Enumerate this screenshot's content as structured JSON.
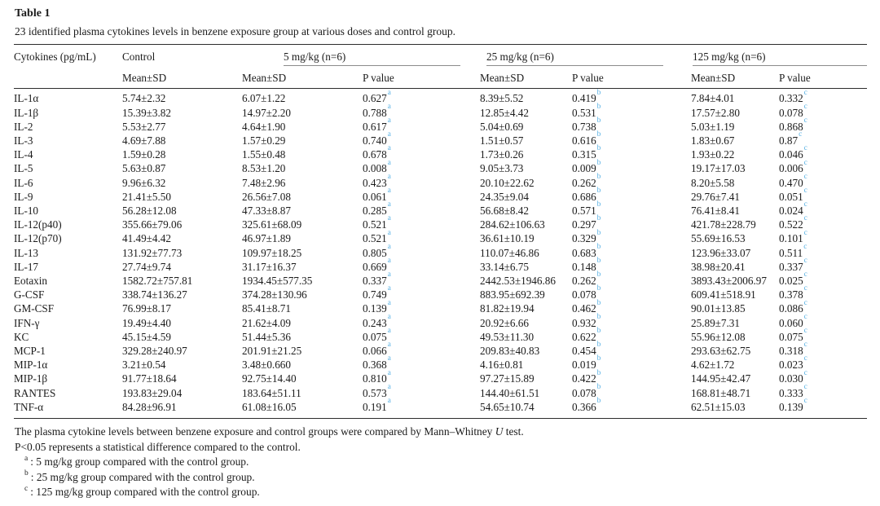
{
  "table": {
    "title": "Table 1",
    "caption": "23 identified plasma cytokines levels in benzene exposure group at various doses and control group.",
    "columns": {
      "cytokines_label": "Cytokines (pg/mL)",
      "control_label": "Control",
      "mean_sd_label": "Mean±SD",
      "p_value_label": "P value",
      "groups": [
        {
          "label": "5 mg/kg (n=6)",
          "sup": "a"
        },
        {
          "label": "25 mg/kg (n=6)",
          "sup": "b"
        },
        {
          "label": "125 mg/kg (n=6)",
          "sup": "c"
        }
      ]
    },
    "sup_color": "#57b0e3",
    "rows": [
      {
        "cytokine": "IL-1α",
        "control": "5.74±2.32",
        "m5": "6.07±1.22",
        "p5": "0.627",
        "m25": "8.39±5.52",
        "p25": "0.419",
        "m125": "7.84±4.01",
        "p125": "0.332",
        "bold": []
      },
      {
        "cytokine": "IL-1β",
        "control": "15.39±3.82",
        "m5": "14.97±2.20",
        "p5": "0.788",
        "m25": "12.85±4.42",
        "p25": "0.531",
        "m125": "17.57±2.80",
        "p125": "0.078",
        "bold": []
      },
      {
        "cytokine": "IL-2",
        "control": "5.53±2.77",
        "m5": "4.64±1.90",
        "p5": "0.617",
        "m25": "5.04±0.69",
        "p25": "0.738",
        "m125": "5.03±1.19",
        "p125": "0.868",
        "bold": []
      },
      {
        "cytokine": "IL-3",
        "control": "4.69±7.88",
        "m5": "1.57±0.29",
        "p5": "0.740",
        "m25": "1.51±0.57",
        "p25": "0.616",
        "m125": "1.83±0.67",
        "p125": "0.87",
        "bold": []
      },
      {
        "cytokine": "IL-4",
        "control": "1.59±0.28",
        "m5": "1.55±0.48",
        "p5": "0.678",
        "m25": "1.73±0.26",
        "p25": "0.315",
        "m125": "1.93±0.22",
        "p125": "0.046",
        "bold": [
          "cytokine",
          "control",
          "m5",
          "p5",
          "m25",
          "p25",
          "m125",
          "p125"
        ]
      },
      {
        "cytokine": "IL-5",
        "control": "5.63±0.87",
        "m5": "8.53±1.20",
        "p5": "0.008",
        "m25": "9.05±3.73",
        "p25": "0.009",
        "m125": "19.17±17.03",
        "p125": "0.006",
        "bold": [
          "cytokine",
          "control",
          "m5",
          "p5",
          "m25",
          "p25",
          "p125"
        ]
      },
      {
        "cytokine": "IL-6",
        "control": "9.96±6.32",
        "m5": "7.48±2.96",
        "p5": "0.423",
        "m25": "20.10±22.62",
        "p25": "0.262",
        "m125": "8.20±5.58",
        "p125": "0.470",
        "bold": []
      },
      {
        "cytokine": "IL-9",
        "control": "21.41±5.50",
        "m5": "26.56±7.08",
        "p5": "0.061",
        "m25": "24.35±9.04",
        "p25": "0.686",
        "m125": "29.76±7.41",
        "p125": "0.051",
        "bold": []
      },
      {
        "cytokine": "IL-10",
        "control": "56.28±12.08",
        "m5": "47.33±8.87",
        "p5": "0.285",
        "m25": "56.68±8.42",
        "p25": "0.571",
        "m125": "76.41±8.41",
        "p125": "0.024",
        "bold": [
          "cytokine",
          "control",
          "m5",
          "p5",
          "m25",
          "p25",
          "m125",
          "p125"
        ]
      },
      {
        "cytokine": "IL-12(p40)",
        "control": "355.66±79.06",
        "m5": "325.61±68.09",
        "p5": "0.521",
        "m25": "284.62±106.63",
        "p25": "0.297",
        "m125": "421.78±228.79",
        "p125": "0.522",
        "bold": []
      },
      {
        "cytokine": "IL-12(p70)",
        "control": "41.49±4.42",
        "m5": "46.97±1.89",
        "p5": "0.521",
        "m25": "36.61±10.19",
        "p25": "0.329",
        "m125": "55.69±16.53",
        "p125": "0.101",
        "bold": []
      },
      {
        "cytokine": "IL-13",
        "control": "131.92±77.73",
        "m5": "109.97±18.25",
        "p5": "0.805",
        "m25": "110.07±46.86",
        "p25": "0.683",
        "m125": "123.96±33.07",
        "p125": "0.511",
        "bold": []
      },
      {
        "cytokine": "IL-17",
        "control": "27.74±9.74",
        "m5": "31.17±16.37",
        "p5": "0.669",
        "m25": "33.14±6.75",
        "p25": "0.148",
        "m125": "38.98±20.41",
        "p125": "0.337",
        "bold": []
      },
      {
        "cytokine": "Eotaxin",
        "control": "1582.72±757.81",
        "m5": "1934.45±577.35",
        "p5": "0.337",
        "m25": "2442.53±1946.86",
        "p25": "0.262",
        "m125": "3893.43±2006.97",
        "p125": "0.025",
        "bold": [
          "cytokine",
          "control",
          "m5",
          "p5",
          "m25",
          "p25",
          "m125",
          "p125"
        ]
      },
      {
        "cytokine": "G-CSF",
        "control": "338.74±136.27",
        "m5": "374.28±130.96",
        "p5": "0.749",
        "m25": "883.95±692.39",
        "p25": "0.078",
        "m125": "609.41±518.91",
        "p125": "0.378",
        "bold": []
      },
      {
        "cytokine": "GM-CSF",
        "control": "76.99±8.17",
        "m5": "85.41±8.71",
        "p5": "0.139",
        "m25": "81.82±19.94",
        "p25": "0.462",
        "m125": "90.01±13.85",
        "p125": "0.086",
        "bold": []
      },
      {
        "cytokine": "IFN-γ",
        "control": "19.49±4.40",
        "m5": "21.62±4.09",
        "p5": "0.243",
        "m25": "20.92±6.66",
        "p25": "0.932",
        "m125": "25.89±7.31",
        "p125": "0.060",
        "bold": []
      },
      {
        "cytokine": "KC",
        "control": "45.15±4.59",
        "m5": "51.44±5.36",
        "p5": "0.075",
        "m25": "49.53±11.30",
        "p25": "0.622",
        "m125": "55.96±12.08",
        "p125": "0.075",
        "bold": []
      },
      {
        "cytokine": "MCP-1",
        "control": "329.28±240.97",
        "m5": "201.91±21.25",
        "p5": "0.066",
        "m25": "209.83±40.83",
        "p25": "0.454",
        "m125": "293.63±62.75",
        "p125": "0.318",
        "bold": []
      },
      {
        "cytokine": "MIP-1α",
        "control": "3.21±0.54",
        "m5": "3.48±0.660",
        "p5": "0.368",
        "m25": "4.16±0.81",
        "p25": "0.019",
        "m125": "4.62±1.72",
        "p125": "0.023",
        "bold": [
          "cytokine",
          "control",
          "m5",
          "p5",
          "m25",
          "p25",
          "p125"
        ]
      },
      {
        "cytokine": "MIP-1β",
        "control": "91.77±18.64",
        "m5": "92.75±14.40",
        "p5": "0.810",
        "m25": "97.27±15.89",
        "p25": "0.422",
        "m125": "144.95±42.47",
        "p125": "0.030",
        "bold": [
          "cytokine",
          "control",
          "m5",
          "p5",
          "m25",
          "p25",
          "m125",
          "p125"
        ]
      },
      {
        "cytokine": "RANTES",
        "control": "193.83±29.04",
        "m5": "183.64±51.11",
        "p5": "0.573",
        "m25": "144.40±61.51",
        "p25": "0.078",
        "m125": "168.81±48.71",
        "p125": "0.333",
        "bold": []
      },
      {
        "cytokine": "TNF-α",
        "control": "84.28±96.91",
        "m5": "61.08±16.05",
        "p5": "0.191",
        "m25": "54.65±10.74",
        "p25": "0.366",
        "m125": "62.51±15.03",
        "p125": "0.139",
        "bold": []
      }
    ]
  },
  "footnotes": {
    "line1_before_u": "The plasma cytokine levels between benzene exposure and control groups were compared by Mann–Whitney ",
    "line1_u": "U",
    "line1_after_u": " test.",
    "line2": "P<0.05 represents a statistical difference compared to the control.",
    "items": [
      {
        "sup": "a",
        "text": ": 5 mg/kg group compared with the control group."
      },
      {
        "sup": "b",
        "text": ": 25 mg/kg group compared with the control group."
      },
      {
        "sup": "c",
        "text": ": 125 mg/kg group compared with the control group."
      }
    ]
  }
}
